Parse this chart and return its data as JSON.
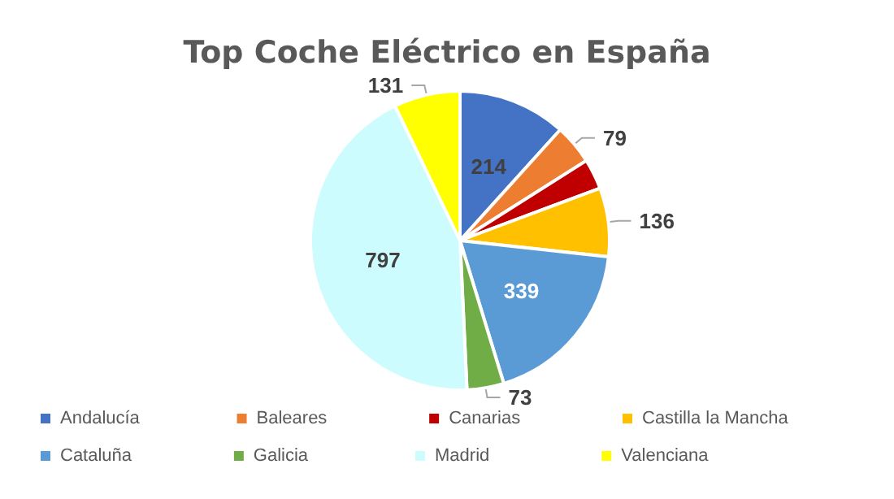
{
  "chart_data": {
    "type": "pie",
    "title": "Top Coche Eléctrico en España",
    "categories": [
      "Andalucía",
      "Baleares",
      "Canarias",
      "Castilla la Mancha",
      "Cataluña",
      "Galicia",
      "Madrid",
      "Valenciana"
    ],
    "values": [
      214,
      79,
      60,
      136,
      339,
      73,
      797,
      131
    ],
    "value_labels": [
      "214",
      "79",
      null,
      "136",
      "339",
      "73",
      "797",
      "131"
    ],
    "colors": [
      "#4472c4",
      "#ed7d31",
      "#c00000",
      "#ffc000",
      "#5b9bd5",
      "#70ad47",
      "#ccfcfd",
      "#ffff00"
    ],
    "legend": "bottom"
  }
}
